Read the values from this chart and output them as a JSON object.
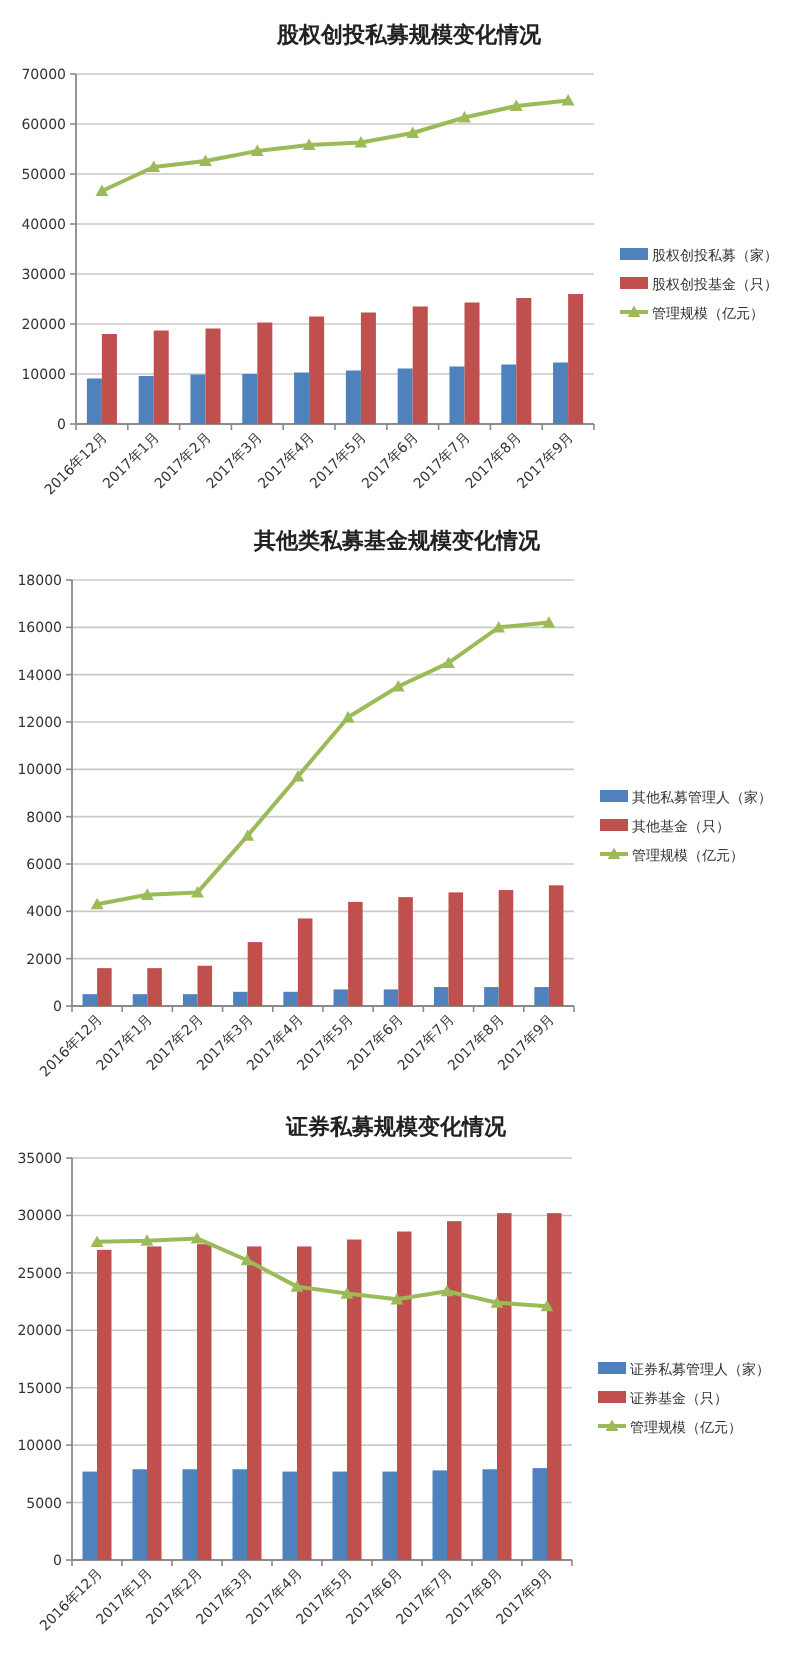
{
  "chart_data": [
    {
      "type": "bar",
      "title": "股权创投私募规模变化情况",
      "categories": [
        "2016年12月",
        "2017年1月",
        "2017年2月",
        "2017年3月",
        "2017年4月",
        "2017年5月",
        "2017年6月",
        "2017年7月",
        "2017年8月",
        "2017年9月"
      ],
      "series": [
        {
          "name": "股权创投私募（家）",
          "color": "#4f81bd",
          "values": [
            9100,
            9600,
            9900,
            10000,
            10300,
            10700,
            11100,
            11500,
            11900,
            12300
          ]
        },
        {
          "name": "股权创投基金（只）",
          "color": "#c0504d",
          "values": [
            18000,
            18700,
            19100,
            20300,
            21500,
            22300,
            23500,
            24300,
            25200,
            26000
          ]
        },
        {
          "name": "管理规模（亿元）",
          "type": "line",
          "color": "#9bbb59",
          "marker": "triangle",
          "values": [
            46600,
            51400,
            52600,
            54600,
            55800,
            56300,
            58200,
            61300,
            63600,
            64700
          ]
        }
      ],
      "ylim": [
        0,
        70000
      ],
      "yticks": [
        0,
        10000,
        20000,
        30000,
        40000,
        50000,
        60000,
        70000
      ],
      "grid": "y",
      "legend": "right"
    },
    {
      "type": "bar",
      "title": "其他类私募基金规模变化情况",
      "categories": [
        "2016年12月",
        "2017年1月",
        "2017年2月",
        "2017年3月",
        "2017年4月",
        "2017年5月",
        "2017年6月",
        "2017年7月",
        "2017年8月",
        "2017年9月"
      ],
      "series": [
        {
          "name": "其他私募管理人（家）",
          "color": "#4f81bd",
          "values": [
            500,
            500,
            500,
            600,
            600,
            700,
            700,
            800,
            800,
            800
          ]
        },
        {
          "name": "其他基金（只）",
          "color": "#c0504d",
          "values": [
            1600,
            1600,
            1700,
            2700,
            3700,
            4400,
            4600,
            4800,
            4900,
            5100
          ]
        },
        {
          "name": "管理规模（亿元）",
          "type": "line",
          "color": "#9bbb59",
          "marker": "triangle",
          "values": [
            4300,
            4700,
            4800,
            7200,
            9700,
            12200,
            13500,
            14500,
            16000,
            16200
          ]
        }
      ],
      "ylim": [
        0,
        18000
      ],
      "yticks": [
        0,
        2000,
        4000,
        6000,
        8000,
        10000,
        12000,
        14000,
        16000,
        18000
      ],
      "grid": "y",
      "legend": "right"
    },
    {
      "type": "bar",
      "title": "证券私募规模变化情况",
      "categories": [
        "2016年12月",
        "2017年1月",
        "2017年2月",
        "2017年3月",
        "2017年4月",
        "2017年5月",
        "2017年6月",
        "2017年7月",
        "2017年8月",
        "2017年9月"
      ],
      "series": [
        {
          "name": "证券私募管理人（家）",
          "color": "#4f81bd",
          "values": [
            7700,
            7900,
            7900,
            7900,
            7700,
            7700,
            7700,
            7800,
            7900,
            8000
          ]
        },
        {
          "name": "证券基金（只）",
          "color": "#c0504d",
          "values": [
            27000,
            27300,
            27500,
            27300,
            27300,
            27900,
            28600,
            29500,
            30200,
            30200
          ]
        },
        {
          "name": "管理规模（亿元）",
          "type": "line",
          "color": "#9bbb59",
          "marker": "triangle",
          "values": [
            27700,
            27800,
            28000,
            26100,
            23800,
            23200,
            22700,
            23400,
            22400,
            22100
          ]
        }
      ],
      "ylim": [
        0,
        35000
      ],
      "yticks": [
        0,
        5000,
        10000,
        15000,
        20000,
        25000,
        30000,
        35000
      ],
      "grid": "y",
      "legend": "right"
    }
  ]
}
